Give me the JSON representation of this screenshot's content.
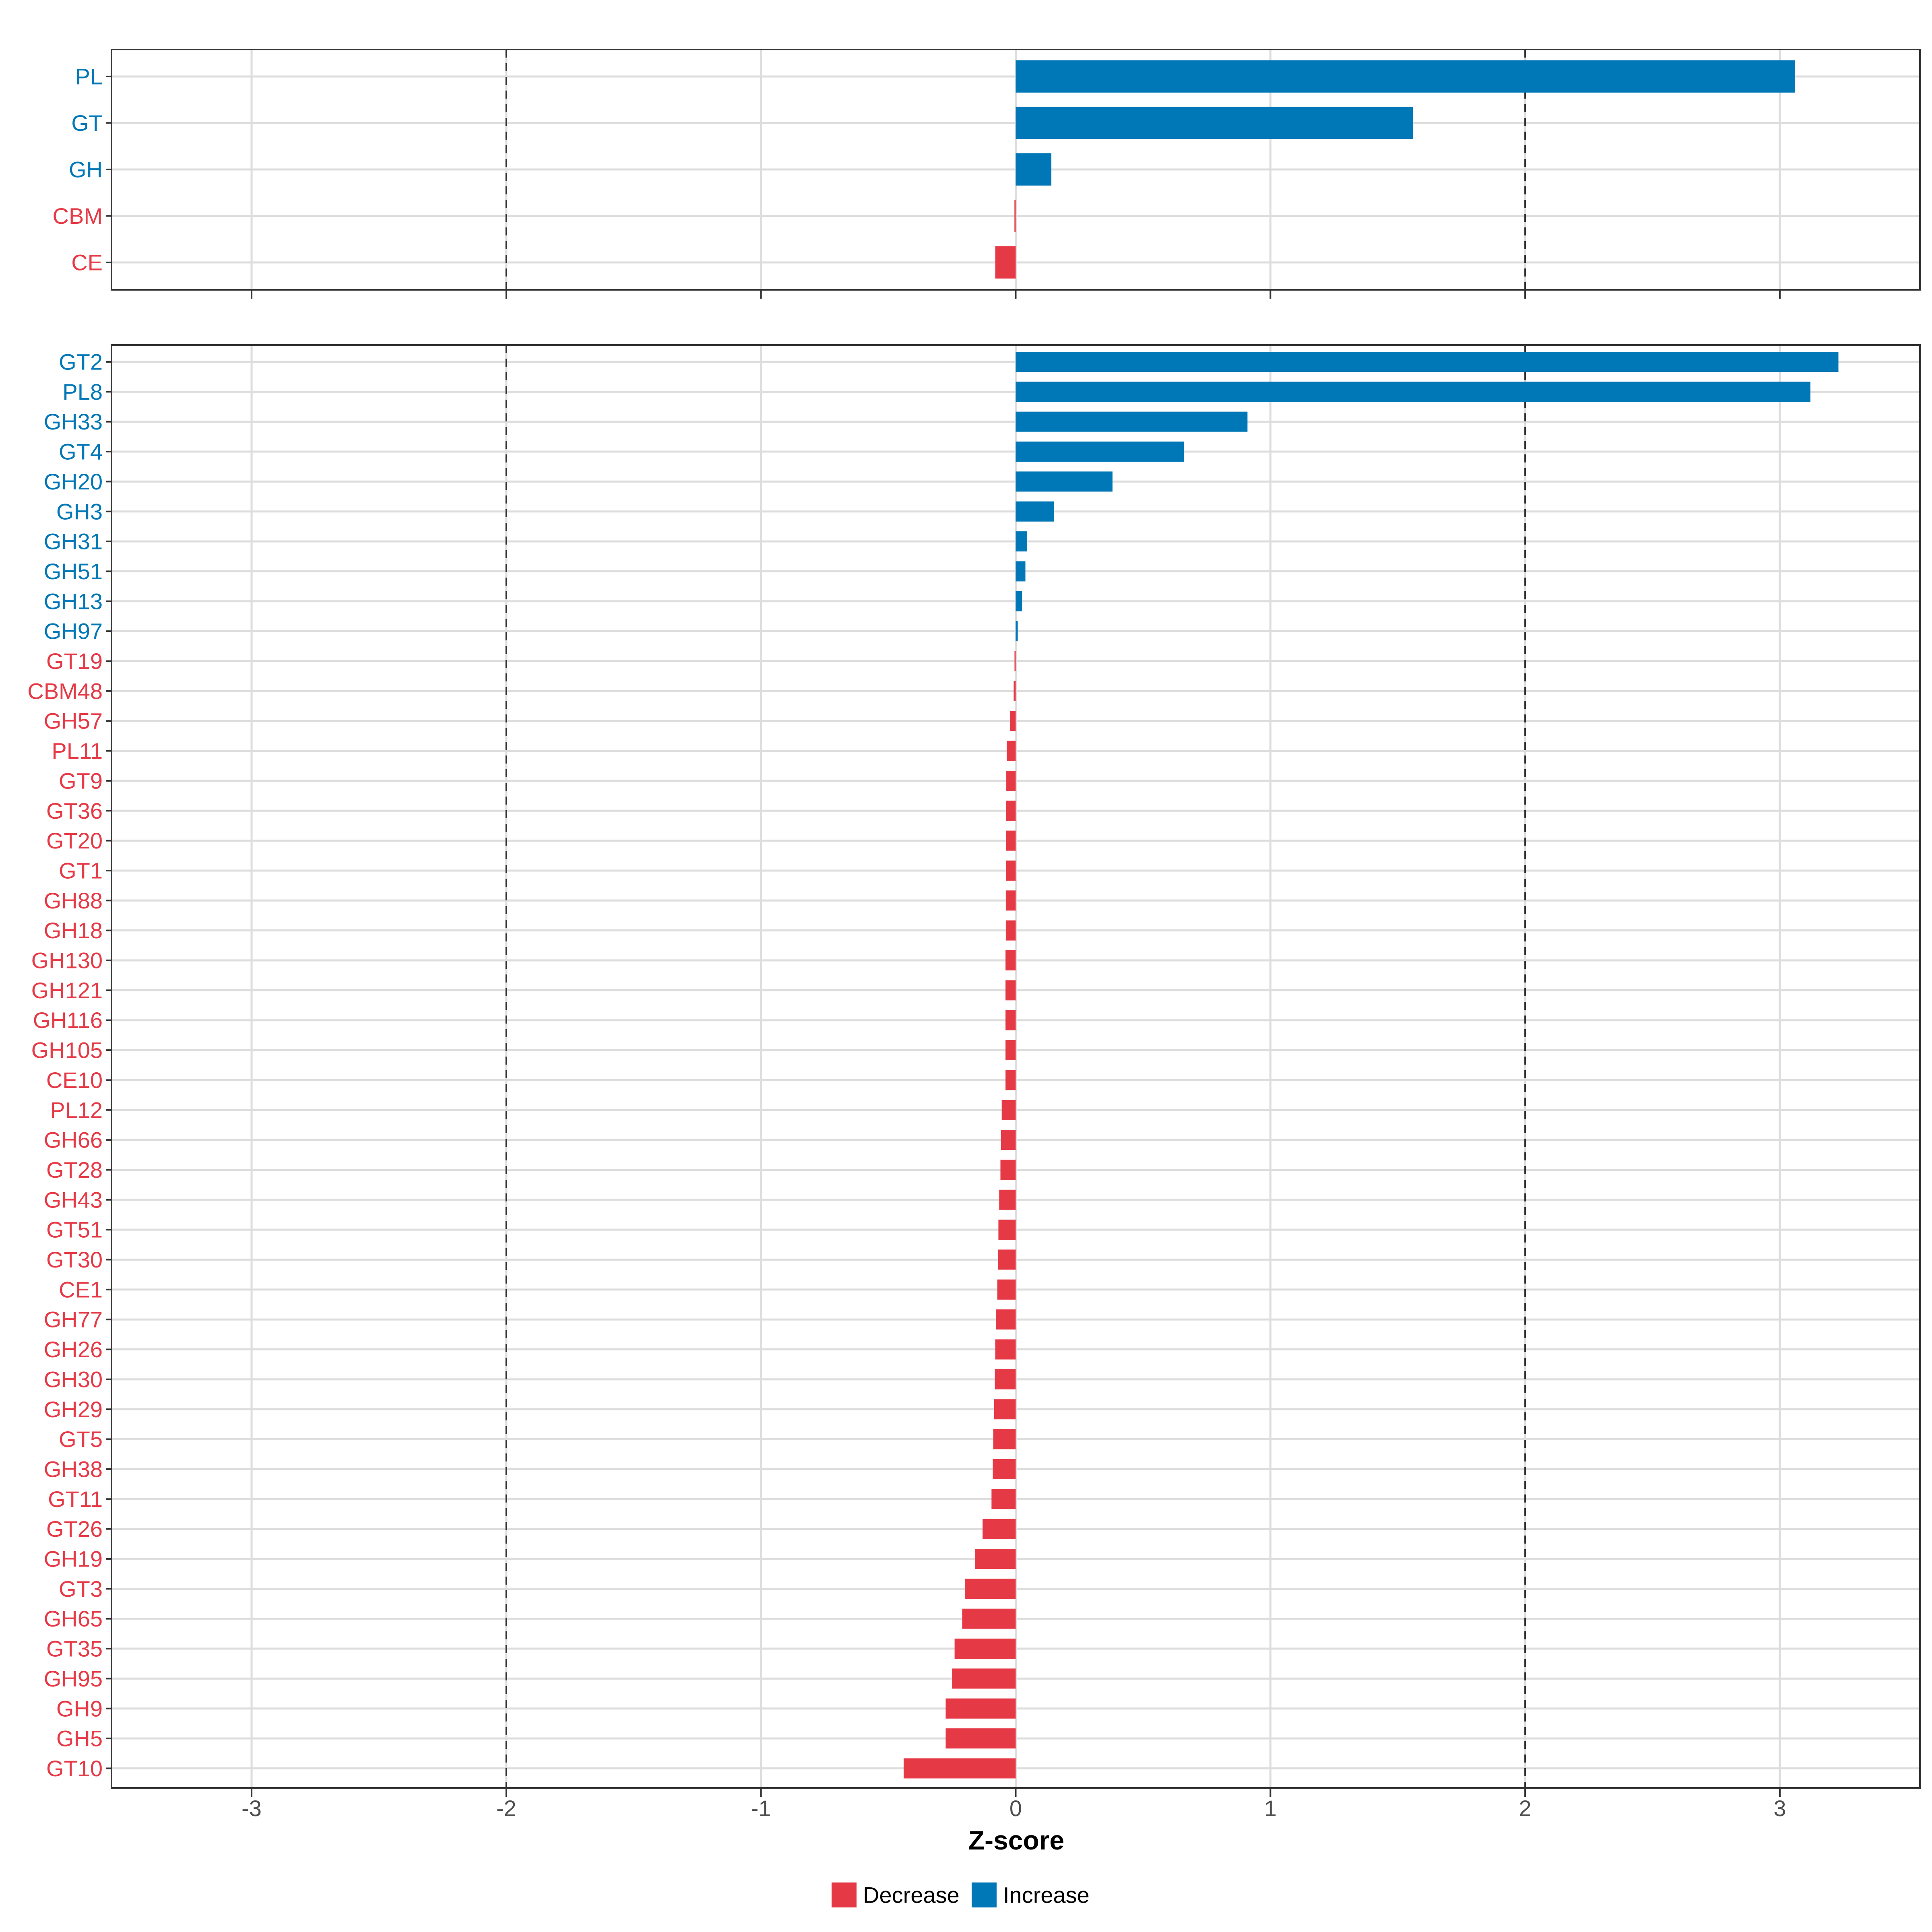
{
  "colors": {
    "increase": "#0077B6",
    "decrease": "#E63946",
    "grid": "#DDDDDD",
    "panel_border": "#333333",
    "threshold_line": "#333333",
    "tick_text": "#4D4D4D",
    "title_text": "#000000"
  },
  "chart_data": [
    {
      "type": "bar",
      "orientation": "horizontal",
      "panel": "top",
      "xlim": [
        -3.55,
        3.55
      ],
      "threshold_lines": [
        -2,
        2
      ],
      "bars": [
        {
          "label": "PL",
          "value": 3.06,
          "direction": "Increase"
        },
        {
          "label": "GT",
          "value": 1.56,
          "direction": "Increase"
        },
        {
          "label": "GH",
          "value": 0.14,
          "direction": "Increase"
        },
        {
          "label": "CBM",
          "value": -0.005,
          "direction": "Decrease"
        },
        {
          "label": "CE",
          "value": -0.08,
          "direction": "Decrease"
        }
      ]
    },
    {
      "type": "bar",
      "orientation": "horizontal",
      "panel": "bottom",
      "xlim": [
        -3.55,
        3.55
      ],
      "threshold_lines": [
        -2,
        2
      ],
      "xlabel": "Z-score",
      "xticks": [
        -3,
        -2,
        -1,
        0,
        1,
        2,
        3
      ],
      "xtick_labels": [
        "-3",
        "-2",
        "-1",
        "0",
        "1",
        "2",
        "3"
      ],
      "bars": [
        {
          "label": "GT2",
          "value": 3.23,
          "direction": "Increase"
        },
        {
          "label": "PL8",
          "value": 3.12,
          "direction": "Increase"
        },
        {
          "label": "GH33",
          "value": 0.91,
          "direction": "Increase"
        },
        {
          "label": "GT4",
          "value": 0.66,
          "direction": "Increase"
        },
        {
          "label": "GH20",
          "value": 0.38,
          "direction": "Increase"
        },
        {
          "label": "GH3",
          "value": 0.15,
          "direction": "Increase"
        },
        {
          "label": "GH31",
          "value": 0.045,
          "direction": "Increase"
        },
        {
          "label": "GH51",
          "value": 0.038,
          "direction": "Increase"
        },
        {
          "label": "GH13",
          "value": 0.025,
          "direction": "Increase"
        },
        {
          "label": "GH97",
          "value": 0.008,
          "direction": "Increase"
        },
        {
          "label": "GT19",
          "value": -0.001,
          "direction": "Decrease"
        },
        {
          "label": "CBM48",
          "value": -0.008,
          "direction": "Decrease"
        },
        {
          "label": "GH57",
          "value": -0.022,
          "direction": "Decrease"
        },
        {
          "label": "PL11",
          "value": -0.035,
          "direction": "Decrease"
        },
        {
          "label": "GT9",
          "value": -0.037,
          "direction": "Decrease"
        },
        {
          "label": "GT36",
          "value": -0.038,
          "direction": "Decrease"
        },
        {
          "label": "GT20",
          "value": -0.038,
          "direction": "Decrease"
        },
        {
          "label": "GT1",
          "value": -0.038,
          "direction": "Decrease"
        },
        {
          "label": "GH88",
          "value": -0.039,
          "direction": "Decrease"
        },
        {
          "label": "GH18",
          "value": -0.039,
          "direction": "Decrease"
        },
        {
          "label": "GH130",
          "value": -0.04,
          "direction": "Decrease"
        },
        {
          "label": "GH121",
          "value": -0.04,
          "direction": "Decrease"
        },
        {
          "label": "GH116",
          "value": -0.04,
          "direction": "Decrease"
        },
        {
          "label": "GH105",
          "value": -0.04,
          "direction": "Decrease"
        },
        {
          "label": "CE10",
          "value": -0.04,
          "direction": "Decrease"
        },
        {
          "label": "PL12",
          "value": -0.055,
          "direction": "Decrease"
        },
        {
          "label": "GH66",
          "value": -0.058,
          "direction": "Decrease"
        },
        {
          "label": "GT28",
          "value": -0.06,
          "direction": "Decrease"
        },
        {
          "label": "GH43",
          "value": -0.065,
          "direction": "Decrease"
        },
        {
          "label": "GT51",
          "value": -0.068,
          "direction": "Decrease"
        },
        {
          "label": "GT30",
          "value": -0.07,
          "direction": "Decrease"
        },
        {
          "label": "CE1",
          "value": -0.072,
          "direction": "Decrease"
        },
        {
          "label": "GH77",
          "value": -0.078,
          "direction": "Decrease"
        },
        {
          "label": "GH26",
          "value": -0.08,
          "direction": "Decrease"
        },
        {
          "label": "GH30",
          "value": -0.082,
          "direction": "Decrease"
        },
        {
          "label": "GH29",
          "value": -0.085,
          "direction": "Decrease"
        },
        {
          "label": "GT5",
          "value": -0.088,
          "direction": "Decrease"
        },
        {
          "label": "GH38",
          "value": -0.09,
          "direction": "Decrease"
        },
        {
          "label": "GT11",
          "value": -0.095,
          "direction": "Decrease"
        },
        {
          "label": "GT26",
          "value": -0.13,
          "direction": "Decrease"
        },
        {
          "label": "GH19",
          "value": -0.16,
          "direction": "Decrease"
        },
        {
          "label": "GT3",
          "value": -0.2,
          "direction": "Decrease"
        },
        {
          "label": "GH65",
          "value": -0.21,
          "direction": "Decrease"
        },
        {
          "label": "GT35",
          "value": -0.24,
          "direction": "Decrease"
        },
        {
          "label": "GH95",
          "value": -0.25,
          "direction": "Decrease"
        },
        {
          "label": "GH9",
          "value": -0.275,
          "direction": "Decrease"
        },
        {
          "label": "GH5",
          "value": -0.275,
          "direction": "Decrease"
        },
        {
          "label": "GT10",
          "value": -0.44,
          "direction": "Decrease"
        }
      ]
    }
  ],
  "legend": {
    "position": "bottom",
    "items": [
      {
        "label": "Decrease",
        "key": "decrease"
      },
      {
        "label": "Increase",
        "key": "increase"
      }
    ]
  }
}
